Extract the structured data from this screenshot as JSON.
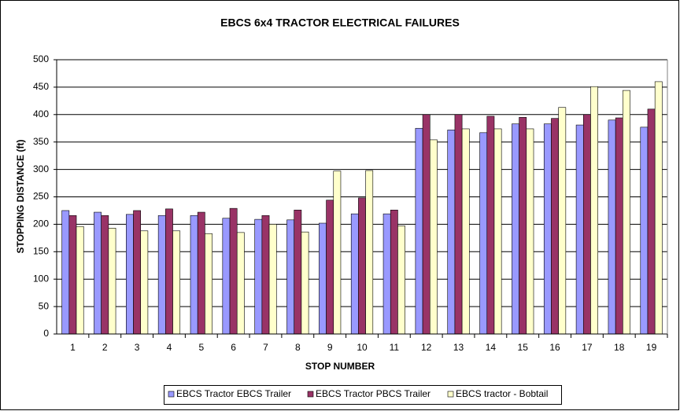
{
  "chart_data": {
    "type": "bar",
    "title": "EBCS 6x4 TRACTOR ELECTRICAL FAILURES",
    "x_label": "STOP NUMBER",
    "y_label": "STOPPING DISTANCE (ft)",
    "categories": [
      "1",
      "2",
      "3",
      "4",
      "5",
      "6",
      "7",
      "8",
      "9",
      "10",
      "11",
      "12",
      "13",
      "14",
      "15",
      "16",
      "17",
      "18",
      "19"
    ],
    "series": [
      {
        "name": "EBCS Tractor EBCS Trailer",
        "color": "#9999ff",
        "values": [
          225,
          222,
          218,
          216,
          216,
          211,
          209,
          208,
          202,
          219,
          219,
          375,
          372,
          367,
          383,
          383,
          381,
          390,
          377
        ]
      },
      {
        "name": "EBCS Tractor PBCS Trailer",
        "color": "#993366",
        "values": [
          216,
          216,
          225,
          228,
          222,
          229,
          216,
          226,
          244,
          248,
          226,
          400,
          400,
          397,
          395,
          393,
          400,
          394,
          410
        ]
      },
      {
        "name": "EBCS tractor - Bobtail",
        "color": "#ffffcc",
        "values": [
          196,
          193,
          188,
          188,
          183,
          185,
          200,
          186,
          297,
          298,
          197,
          354,
          374,
          374,
          374,
          413,
          451,
          444,
          460
        ]
      }
    ],
    "ylim": [
      0,
      500
    ],
    "yticks": [
      0,
      50,
      100,
      150,
      200,
      250,
      300,
      350,
      400,
      450,
      500
    ],
    "grid": true,
    "legend": "bottom"
  }
}
